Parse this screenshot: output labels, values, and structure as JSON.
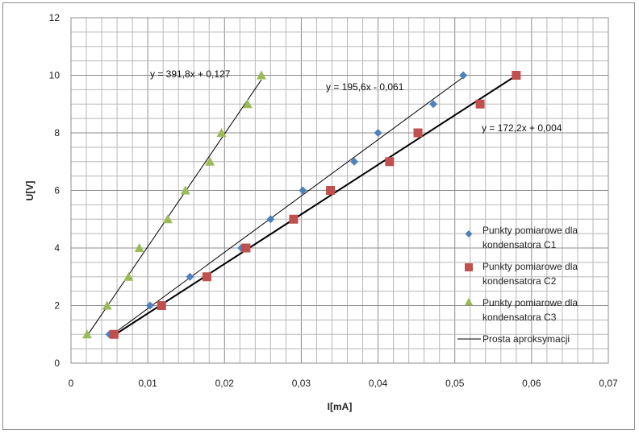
{
  "chart_data": {
    "type": "scatter",
    "xlabel": "I[mA]",
    "ylabel": "U[V]",
    "xlim": [
      0,
      0.07
    ],
    "ylim": [
      0,
      12
    ],
    "xticks": [
      "0",
      "0,01",
      "0,02",
      "0,03",
      "0,04",
      "0,05",
      "0,06",
      "0,07"
    ],
    "yticks": [
      "0",
      "2",
      "4",
      "6",
      "8",
      "10",
      "12"
    ],
    "grid": true,
    "legend_position": "right",
    "series": [
      {
        "name": "Punkty pomiarowe dla kondensatora C1",
        "legend_lines": [
          "Punkty pomiarowe dla",
          "kondensatora C1"
        ],
        "marker": "diamond",
        "color": "#4f81bd",
        "x": [
          0.005,
          0.0103,
          0.0155,
          0.0222,
          0.026,
          0.0302,
          0.0369,
          0.04,
          0.0472,
          0.0511
        ],
        "y": [
          1,
          2,
          3,
          4,
          5,
          6,
          7,
          8,
          9,
          10
        ]
      },
      {
        "name": "Punkty pomiarowe dla kondensatora C2",
        "legend_lines": [
          "Punkty pomiarowe dla",
          "kondensatora C2"
        ],
        "marker": "square",
        "color": "#c0504d",
        "x": [
          0.0056,
          0.0118,
          0.0177,
          0.0228,
          0.029,
          0.0338,
          0.0415,
          0.0452,
          0.0533,
          0.058
        ],
        "y": [
          1,
          2,
          3,
          4,
          5,
          6,
          7,
          8,
          9,
          10
        ]
      },
      {
        "name": "Punkty pomiarowe dla kondensatora C3",
        "legend_lines": [
          "Punkty pomiarowe dla",
          "kondensatora C3"
        ],
        "marker": "triangle",
        "color": "#9bbb59",
        "x": [
          0.0021,
          0.0047,
          0.0075,
          0.0089,
          0.0126,
          0.0149,
          0.0181,
          0.0196,
          0.023,
          0.0248
        ],
        "y": [
          1,
          2,
          3,
          4,
          5,
          6,
          7,
          8,
          9,
          10
        ]
      }
    ],
    "trendlines": [
      {
        "equation": "y = 391,8x + 0,127",
        "slope": 391.8,
        "intercept": 0.127,
        "x_range": [
          0.0021,
          0.0248
        ],
        "color": "#000000",
        "width": 1
      },
      {
        "equation": "y = 195,6x - 0,061",
        "slope": 195.6,
        "intercept": -0.061,
        "x_range": [
          0.005,
          0.0514
        ],
        "color": "#000000",
        "width": 1
      },
      {
        "equation": "y = 172,2x + 0,004",
        "slope": 172.2,
        "intercept": 0.004,
        "x_range": [
          0.0056,
          0.058
        ],
        "color": "#000000",
        "width": 2
      }
    ],
    "trendline_legend_label": "Prosta aproksymacji"
  }
}
